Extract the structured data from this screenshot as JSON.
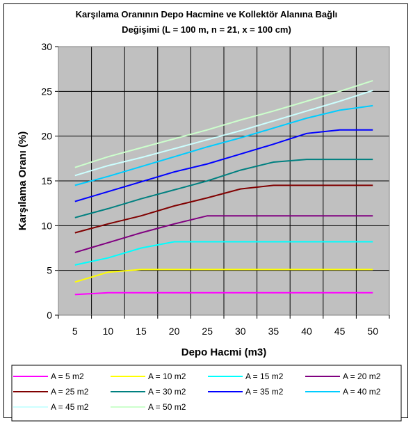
{
  "chart_data": {
    "type": "line",
    "title": "Karşılama Oranının Depo Hacmine ve Kollektör Alanına Bağlı Değişimi (L = 100 m, n = 21, x = 100 cm)",
    "title_lines": [
      "Karşılama Oranının Depo Hacmine ve Kollektör Alanına Bağlı",
      "Değişimi (L = 100 m, n = 21, x = 100 cm)"
    ],
    "xlabel": "Depo Hacmi (m3)",
    "ylabel": "Karşılama Oranı (%)",
    "categories": [
      5,
      10,
      15,
      20,
      25,
      30,
      35,
      40,
      45,
      50
    ],
    "ylim": [
      0,
      30
    ],
    "yticks": [
      0,
      5,
      10,
      15,
      20,
      25,
      30
    ],
    "grid": true,
    "plot_background": "#c0c0c0",
    "legend_position": "bottom",
    "series": [
      {
        "name": "A = 5 m2",
        "color": "#ff00ff",
        "values": [
          2.3,
          2.5,
          2.5,
          2.5,
          2.5,
          2.5,
          2.5,
          2.5,
          2.5,
          2.5
        ]
      },
      {
        "name": "A = 10 m2",
        "color": "#ffff00",
        "values": [
          3.7,
          4.8,
          5.1,
          5.1,
          5.1,
          5.1,
          5.1,
          5.1,
          5.1,
          5.1
        ]
      },
      {
        "name": "A = 15 m2",
        "color": "#00ffff",
        "values": [
          5.6,
          6.4,
          7.5,
          8.2,
          8.2,
          8.2,
          8.2,
          8.2,
          8.2,
          8.2
        ]
      },
      {
        "name": "A = 20 m2",
        "color": "#800080",
        "values": [
          7.0,
          8.1,
          9.2,
          10.2,
          11.1,
          11.1,
          11.1,
          11.1,
          11.1,
          11.1
        ]
      },
      {
        "name": "A = 25 m2",
        "color": "#800000",
        "values": [
          9.2,
          10.2,
          11.1,
          12.2,
          13.1,
          14.1,
          14.5,
          14.5,
          14.5,
          14.5
        ]
      },
      {
        "name": "A = 30 m2",
        "color": "#008080",
        "values": [
          10.9,
          11.9,
          13.0,
          14.0,
          15.0,
          16.2,
          17.1,
          17.4,
          17.4,
          17.4
        ]
      },
      {
        "name": "A = 35 m2",
        "color": "#0000ff",
        "values": [
          12.7,
          13.8,
          14.9,
          16.0,
          16.9,
          18.0,
          19.1,
          20.3,
          20.7,
          20.7
        ]
      },
      {
        "name": "A = 40 m2",
        "color": "#00ccff",
        "values": [
          14.5,
          15.5,
          16.6,
          17.7,
          18.8,
          19.8,
          20.9,
          22.0,
          22.9,
          23.4
        ]
      },
      {
        "name": "A = 45 m2",
        "color": "#ccffff",
        "values": [
          15.6,
          16.7,
          17.6,
          18.6,
          19.6,
          20.6,
          21.7,
          22.8,
          23.9,
          25.1
        ]
      },
      {
        "name": "A = 50 m2",
        "color": "#ccffcc",
        "values": [
          16.5,
          17.7,
          18.7,
          19.7,
          20.7,
          21.8,
          22.8,
          23.9,
          25.0,
          26.2
        ]
      }
    ]
  }
}
